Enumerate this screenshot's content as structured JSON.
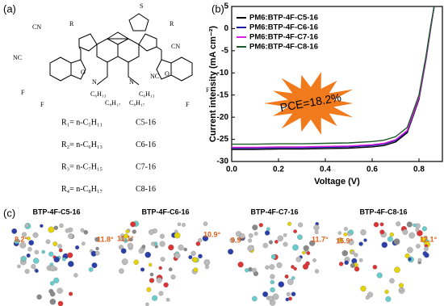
{
  "panel_labels": [
    "(a)",
    "(b)",
    "(c)"
  ],
  "panel_a": {
    "structure_labels": [
      "CN",
      "NC",
      "CN",
      "NC",
      "O",
      "O",
      "F",
      "F",
      "F",
      "F",
      "S",
      "N",
      "N",
      "R",
      "R",
      "C₆H₁₃",
      "C₈H₁₇",
      "C₆H₁₃",
      "C₈H₁₇"
    ],
    "substituents": [
      {
        "formula": "R₁= n-C₅H₁₁",
        "name": "C5-16"
      },
      {
        "formula": "R₂= n-C₆H₁₃",
        "name": "C6-16"
      },
      {
        "formula": "R₃= n-C₇H₁₅",
        "name": "C7-16"
      },
      {
        "formula": "R₄= n-C₈H₁₇",
        "name": "C8-16"
      }
    ]
  },
  "chart_data": {
    "type": "line",
    "xlabel": "Voltage (V)",
    "ylabel": "Current intensity (mA cm⁻²)",
    "annotation": "PCE=18.2%",
    "legend": "upper left",
    "x": [
      0,
      0.1,
      0.2,
      0.3,
      0.4,
      0.5,
      0.6,
      0.65,
      0.7,
      0.75,
      0.8,
      0.83,
      0.85,
      0.865
    ],
    "series": [
      {
        "name": "PM6:BTP-4F-C5-16",
        "color": "#000000",
        "values": [
          -27.3,
          -27.3,
          -27.2,
          -27.2,
          -27.1,
          -27.0,
          -26.7,
          -26.4,
          -25.6,
          -23.5,
          -16,
          -7,
          0,
          5
        ]
      },
      {
        "name": "PM6:BTP-4F-C6-16",
        "color": "#1a1aa8",
        "values": [
          -27.0,
          -27.0,
          -26.9,
          -26.9,
          -26.8,
          -26.7,
          -26.4,
          -26.1,
          -25.3,
          -23.2,
          -15.7,
          -6.8,
          0.2,
          5
        ]
      },
      {
        "name": "PM6:BTP-4F-C7-16",
        "color": "#e020e0",
        "values": [
          -26.8,
          -26.8,
          -26.7,
          -26.7,
          -26.6,
          -26.5,
          -26.2,
          -25.9,
          -25.1,
          -23.0,
          -15.6,
          -6.7,
          0.3,
          5
        ]
      },
      {
        "name": "PM6:BTP-4F-C8-16",
        "color": "#1d5a2a",
        "values": [
          -26.1,
          -26.1,
          -26.0,
          -26.0,
          -25.9,
          -25.8,
          -25.5,
          -25.2,
          -24.4,
          -22.3,
          -15.0,
          -6.2,
          0.6,
          5
        ]
      }
    ],
    "xlim": [
      0,
      0.9
    ],
    "ylim": [
      -30,
      5
    ],
    "xticks": [
      {
        "value": 0,
        "label": "0.0"
      },
      0.2,
      0.4,
      0.6,
      0.8
    ],
    "yticks": [
      -30,
      -25,
      -20,
      -15,
      -10,
      -5,
      0,
      5
    ]
  },
  "panel_c": {
    "molecules": [
      {
        "title": "BTP-4F-C5-16",
        "angles": [
          "8.2°",
          "11.8°"
        ]
      },
      {
        "title": "BTP-4F-C6-16",
        "angles": [
          "11.1°",
          "10.9°"
        ]
      },
      {
        "title": "BTP-4F-C7-16",
        "angles": [
          "9.9°",
          "11.7°"
        ]
      },
      {
        "title": "BTP-4F-C8-16",
        "angles": [
          "15.9°",
          "12.1°"
        ]
      }
    ]
  }
}
